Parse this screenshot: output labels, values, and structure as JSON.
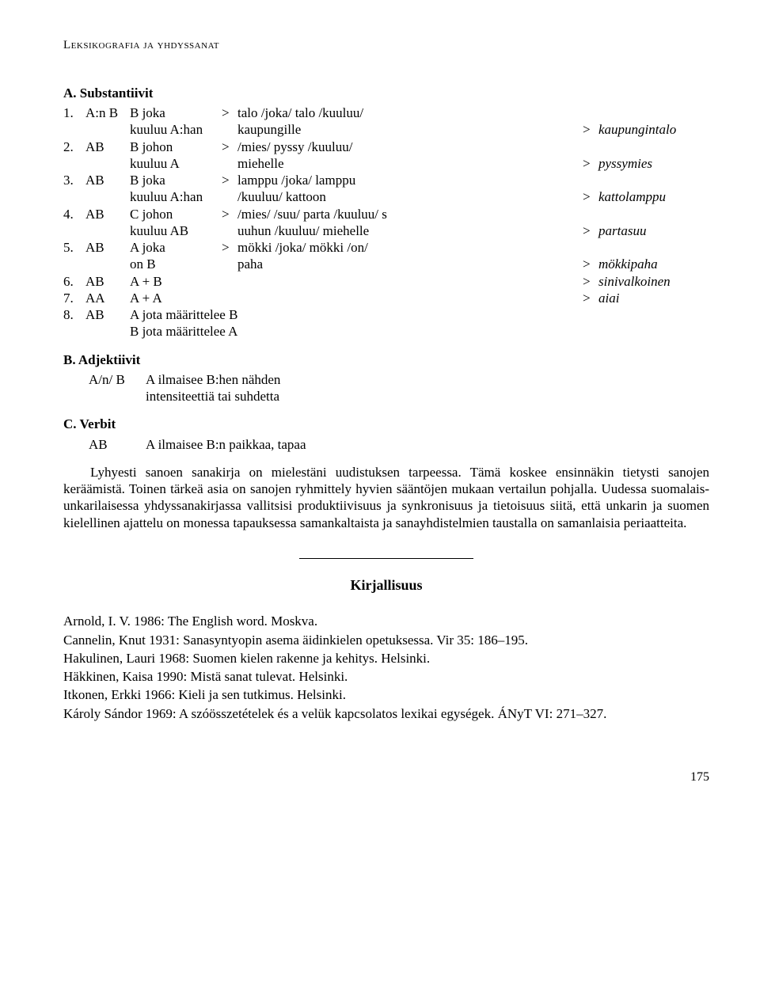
{
  "running_head": "Leksikografia ja yhdyssanat",
  "secA_head": "A. Substantiivit",
  "secB_head": "B. Adjektiivit",
  "secC_head": "C. Verbit",
  "rows": {
    "r1": {
      "n": "1.",
      "ab": "A:n B",
      "bx": "B joka",
      "gt": ">",
      "tx": "talo /joka/ talo /kuuluu/"
    },
    "r1b": {
      "n": "",
      "ab": "",
      "bx": "kuuluu A:han",
      "gt": "",
      "tx": "kaupungille",
      "gt2": ">",
      "res": "kaupungintalo"
    },
    "r2": {
      "n": "2.",
      "ab": "AB",
      "bx": "B johon",
      "gt": ">",
      "tx": "/mies/ pyssy /kuuluu/"
    },
    "r2b": {
      "n": "",
      "ab": "",
      "bx": "kuuluu A",
      "gt": "",
      "tx": "miehelle",
      "gt2": ">",
      "res": "pyssymies"
    },
    "r3": {
      "n": "3.",
      "ab": "AB",
      "bx": "B joka",
      "gt": ">",
      "tx": "lamppu /joka/ lamppu"
    },
    "r3b": {
      "n": "",
      "ab": "",
      "bx": "kuuluu A:han",
      "gt": "",
      "tx": "/kuuluu/ kattoon",
      "gt2": ">",
      "res": "kattolamppu"
    },
    "r4": {
      "n": "4.",
      "ab": "AB",
      "bx": "C johon",
      "gt": ">",
      "tx": "/mies/ /suu/ parta /kuuluu/ s"
    },
    "r4b": {
      "n": "",
      "ab": "",
      "bx": "kuuluu AB",
      "gt": "",
      "tx": "uuhun /kuuluu/ miehelle",
      "gt2": ">",
      "res": "partasuu"
    },
    "r5": {
      "n": "5.",
      "ab": "AB",
      "bx": "A joka",
      "gt": ">",
      "tx": "mökki /joka/ mökki /on/"
    },
    "r5b": {
      "n": "",
      "ab": "",
      "bx": "on B",
      "gt": "",
      "tx": "paha",
      "gt2": ">",
      "res": "mökkipaha"
    },
    "r6": {
      "n": "6.",
      "ab": "AB",
      "bx": "A + B",
      "gt": "",
      "tx": "",
      "gt2": ">",
      "res": "sinivalkoinen"
    },
    "r7": {
      "n": "7.",
      "ab": "AA",
      "bx": "A + A",
      "gt": "",
      "tx": "",
      "gt2": ">",
      "res": "aiai"
    },
    "r8": {
      "n": "8.",
      "ab": "AB",
      "bx": "A jota määrittelee B",
      "gt": "",
      "tx": ""
    },
    "r8b": {
      "n": "",
      "ab": "",
      "bx": "B jota määrittelee A",
      "gt": "",
      "tx": ""
    }
  },
  "adj": {
    "ab": "A/n/ B",
    "l1": "A ilmaisee B:hen nähden",
    "l2": "intensiteettiä tai suhdetta"
  },
  "verb": {
    "ab": "AB",
    "l1": "A ilmaisee B:n paikkaa, tapaa"
  },
  "para": "Lyhyesti sanoen sanakirja on mielestäni uudistuksen tarpeessa. Tämä koskee ensinnäkin tietysti sanojen keräämistä. Toinen tärkeä asia on sanojen ryhmittely hyvien sääntöjen mukaan vertailun pohjalla. Uudessa suomalais-unkarilaisessa yhdyssanakirjassa vallitsisi produktiivisuus ja synkronisuus ja tietoisuus siitä, että unkarin ja suomen kielellinen ajattelu on monessa tapauksessa samankaltaista ja sanayhdistelmien taustalla on samanlaisia periaatteita.",
  "kirj_head": "Kirjallisuus",
  "refs": {
    "r1": "Arnold, I. V. 1986: The English word. Moskva.",
    "r2": "Cannelin, Knut 1931: Sanasyntyopin asema äidinkielen opetuksessa. Vir 35: 186–195.",
    "r3": "Hakulinen, Lauri 1968: Suomen kielen rakenne ja kehitys. Helsinki.",
    "r4": "Häkkinen, Kaisa 1990: Mistä sanat tulevat. Helsinki.",
    "r5": "Itkonen, Erkki 1966: Kieli ja sen tutkimus. Helsinki.",
    "r6": "Károly Sándor 1969: A szóösszetételek és a velük kapcsolatos lexikai egységek. ÁNyT VI: 271–327."
  },
  "page_number": "175"
}
